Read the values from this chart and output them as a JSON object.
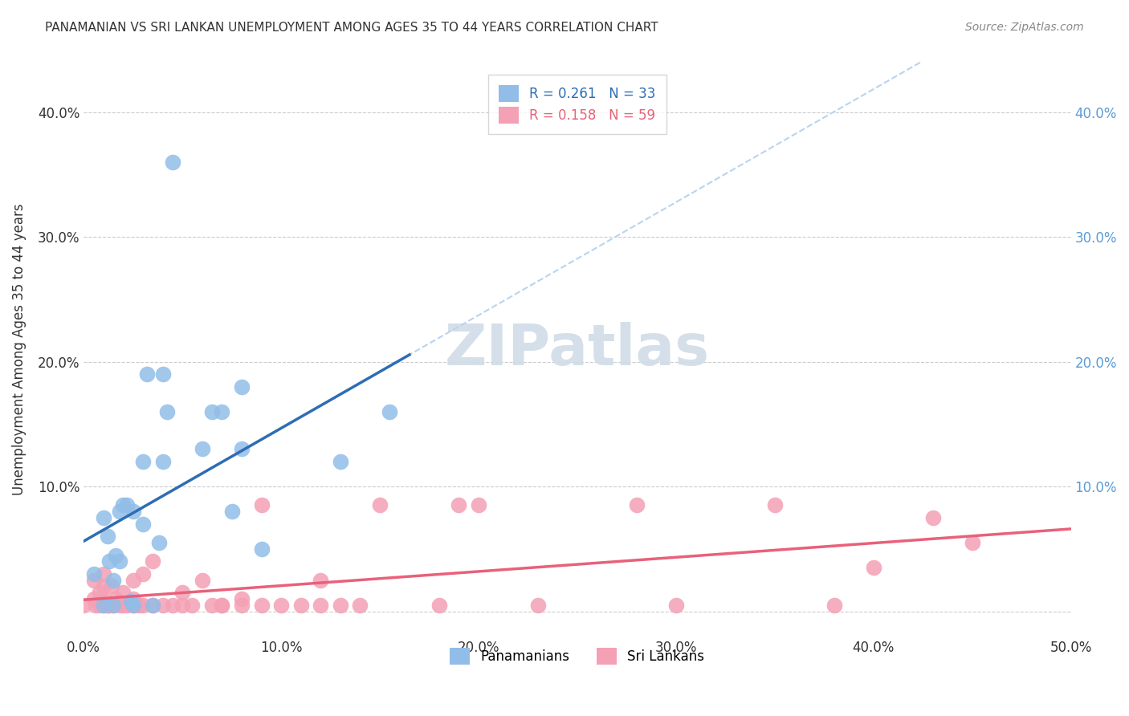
{
  "title": "PANAMANIAN VS SRI LANKAN UNEMPLOYMENT AMONG AGES 35 TO 44 YEARS CORRELATION CHART",
  "source": "Source: ZipAtlas.com",
  "xlabel": "",
  "ylabel": "Unemployment Among Ages 35 to 44 years",
  "xlim": [
    0.0,
    0.5
  ],
  "ylim": [
    -0.02,
    0.44
  ],
  "xticks": [
    0.0,
    0.1,
    0.2,
    0.3,
    0.4,
    0.5
  ],
  "yticks": [
    0.0,
    0.1,
    0.2,
    0.3,
    0.4
  ],
  "xticklabels": [
    "0.0%",
    "10.0%",
    "20.0%",
    "30.0%",
    "40.0%",
    "50.0%"
  ],
  "yticklabels": [
    "",
    "10.0%",
    "20.0%",
    "30.0%",
    "40.0%"
  ],
  "right_yticklabels": [
    "",
    "10.0%",
    "20.0%",
    "30.0%",
    "40.0%"
  ],
  "legend_r1": "R = 0.261",
  "legend_n1": "N = 33",
  "legend_r2": "R = 0.158",
  "legend_n2": "N = 59",
  "blue_color": "#91bde8",
  "blue_line_color": "#2e6db4",
  "pink_color": "#f4a0b5",
  "pink_line_color": "#e8617a",
  "blue_dashed_color": "#b8d4f0",
  "watermark_color": "#d0dce8",
  "background_color": "#ffffff",
  "grid_color": "#cccccc",
  "panama_x": [
    0.005,
    0.01,
    0.01,
    0.012,
    0.013,
    0.015,
    0.015,
    0.016,
    0.018,
    0.018,
    0.02,
    0.022,
    0.024,
    0.025,
    0.025,
    0.03,
    0.03,
    0.032,
    0.035,
    0.038,
    0.04,
    0.04,
    0.042,
    0.045,
    0.06,
    0.065,
    0.07,
    0.075,
    0.08,
    0.08,
    0.09,
    0.13,
    0.155
  ],
  "panama_y": [
    0.03,
    0.005,
    0.075,
    0.06,
    0.04,
    0.005,
    0.025,
    0.045,
    0.04,
    0.08,
    0.085,
    0.085,
    0.008,
    0.005,
    0.08,
    0.07,
    0.12,
    0.19,
    0.005,
    0.055,
    0.19,
    0.12,
    0.16,
    0.36,
    0.13,
    0.16,
    0.16,
    0.08,
    0.13,
    0.18,
    0.05,
    0.12,
    0.16
  ],
  "srilanka_x": [
    0.0,
    0.005,
    0.005,
    0.006,
    0.008,
    0.008,
    0.01,
    0.01,
    0.01,
    0.01,
    0.012,
    0.012,
    0.013,
    0.014,
    0.015,
    0.016,
    0.018,
    0.02,
    0.02,
    0.022,
    0.025,
    0.025,
    0.025,
    0.028,
    0.03,
    0.03,
    0.035,
    0.035,
    0.04,
    0.045,
    0.05,
    0.05,
    0.055,
    0.06,
    0.065,
    0.07,
    0.07,
    0.08,
    0.08,
    0.09,
    0.09,
    0.1,
    0.11,
    0.12,
    0.12,
    0.13,
    0.14,
    0.15,
    0.18,
    0.19,
    0.2,
    0.23,
    0.28,
    0.3,
    0.35,
    0.38,
    0.4,
    0.43,
    0.45
  ],
  "srilanka_y": [
    0.005,
    0.01,
    0.025,
    0.005,
    0.005,
    0.015,
    0.005,
    0.01,
    0.02,
    0.03,
    0.005,
    0.005,
    0.005,
    0.02,
    0.005,
    0.01,
    0.005,
    0.005,
    0.015,
    0.005,
    0.005,
    0.01,
    0.025,
    0.005,
    0.005,
    0.03,
    0.005,
    0.04,
    0.005,
    0.005,
    0.005,
    0.015,
    0.005,
    0.025,
    0.005,
    0.005,
    0.005,
    0.005,
    0.01,
    0.005,
    0.085,
    0.005,
    0.005,
    0.005,
    0.025,
    0.005,
    0.005,
    0.085,
    0.005,
    0.085,
    0.085,
    0.005,
    0.085,
    0.005,
    0.085,
    0.005,
    0.035,
    0.075,
    0.055
  ]
}
